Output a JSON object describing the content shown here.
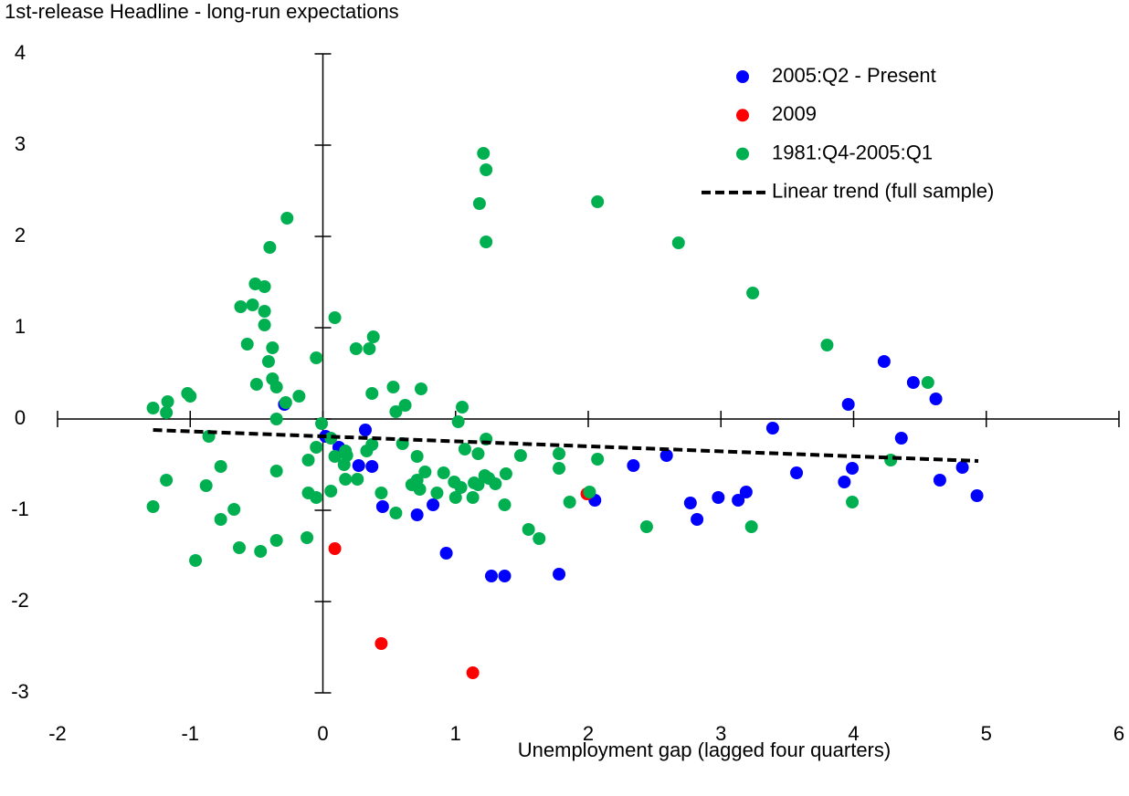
{
  "chart_data": {
    "type": "scatter",
    "title": "1st-release Headline - long-run expectations",
    "x_label": "Unemployment gap (lagged four quarters)",
    "xlim": [
      -2,
      6
    ],
    "xticks": [
      -2,
      -1,
      0,
      1,
      2,
      3,
      4,
      5,
      6
    ],
    "ylim": [
      -3,
      4
    ],
    "yticks": [
      -3,
      -2,
      -1,
      0,
      1,
      2,
      3,
      4
    ],
    "grid": false,
    "legend": "upper right",
    "series": [
      {
        "name": "2005:Q2 - Present",
        "color": "#0000ff",
        "x": [
          -0.29,
          0.02,
          0.12,
          0.32,
          0.27,
          0.37,
          0.45,
          0.71,
          0.83,
          0.93,
          1.27,
          1.37,
          1.78,
          2.05,
          2.34,
          2.59,
          2.77,
          2.82,
          2.98,
          3.13,
          3.19,
          3.39,
          3.57,
          3.93,
          3.99,
          3.96,
          4.23,
          4.45,
          4.36,
          4.62,
          4.65,
          4.82,
          4.93
        ],
        "values": [
          0.16,
          -0.19,
          -0.31,
          -0.12,
          -0.51,
          -0.52,
          -0.96,
          -1.05,
          -0.94,
          -1.47,
          -1.72,
          -1.72,
          -1.7,
          -0.89,
          -0.51,
          -0.4,
          -0.92,
          -1.1,
          -0.86,
          -0.89,
          -0.8,
          -0.1,
          -0.59,
          -0.69,
          -0.54,
          0.16,
          0.63,
          0.4,
          -0.21,
          0.22,
          -0.67,
          -0.53,
          -0.84
        ]
      },
      {
        "name": "2009",
        "color": "#ff0000",
        "x": [
          0.09,
          0.44,
          1.13,
          1.99
        ],
        "values": [
          -1.42,
          -2.46,
          -2.78,
          -0.82
        ]
      },
      {
        "name": "1981:Q4-2005:Q1",
        "color": "#00b050",
        "x": [
          -1.28,
          -1.17,
          -1.18,
          -1.02,
          -1.0,
          -1.28,
          -1.18,
          -0.86,
          -0.88,
          -0.96,
          -0.77,
          -0.77,
          -0.67,
          -0.63,
          -0.47,
          -0.35,
          -0.62,
          -0.53,
          -0.57,
          -0.51,
          -0.44,
          -0.44,
          -0.44,
          -0.4,
          -0.41,
          -0.38,
          -0.5,
          -0.38,
          -0.35,
          -0.35,
          -0.35,
          -0.27,
          -0.28,
          -0.18,
          -0.05,
          -0.01,
          -0.05,
          -0.11,
          -0.11,
          -0.05,
          -0.12,
          0.09,
          0.06,
          0.06,
          0.09,
          0.17,
          0.18,
          0.17,
          0.16,
          0.25,
          0.35,
          0.38,
          0.37,
          0.26,
          0.33,
          0.37,
          0.44,
          0.53,
          0.55,
          0.55,
          0.62,
          0.6,
          0.67,
          0.71,
          0.71,
          0.73,
          0.74,
          0.77,
          0.86,
          0.91,
          0.99,
          1.02,
          1.0,
          1.05,
          1.04,
          1.07,
          1.13,
          1.14,
          1.17,
          1.18,
          1.21,
          1.23,
          1.23,
          1.23,
          1.17,
          1.22,
          1.25,
          1.3,
          1.38,
          1.37,
          1.49,
          1.55,
          1.63,
          1.78,
          1.78,
          1.86,
          2.01,
          2.07,
          2.07,
          2.44,
          2.68,
          3.24,
          3.23,
          3.8,
          3.99,
          4.28,
          4.56
        ],
        "values": [
          0.12,
          0.19,
          0.07,
          0.28,
          0.25,
          -0.96,
          -0.67,
          -0.19,
          -0.73,
          -1.55,
          -0.52,
          -1.1,
          -0.99,
          -1.41,
          -1.45,
          -1.33,
          1.23,
          1.25,
          0.82,
          1.48,
          1.45,
          1.18,
          1.03,
          1.88,
          0.63,
          0.78,
          0.38,
          0.44,
          0.35,
          0.0,
          -0.57,
          2.2,
          0.18,
          0.25,
          0.67,
          -0.05,
          -0.31,
          -0.45,
          -0.81,
          -0.86,
          -1.3,
          1.11,
          -0.21,
          -0.79,
          -0.41,
          -0.35,
          -0.4,
          -0.66,
          -0.5,
          0.77,
          0.77,
          0.9,
          0.28,
          -0.66,
          -0.35,
          -0.28,
          -0.81,
          0.35,
          0.08,
          -1.03,
          0.15,
          -0.27,
          -0.72,
          -0.67,
          -0.41,
          -0.77,
          0.33,
          -0.58,
          -0.81,
          -0.59,
          -0.69,
          -0.03,
          -0.86,
          0.13,
          -0.75,
          -0.33,
          -0.86,
          -0.7,
          -0.38,
          2.36,
          2.91,
          2.73,
          1.94,
          -0.22,
          -0.72,
          -0.62,
          -0.65,
          -0.71,
          -0.6,
          -0.94,
          -0.4,
          -1.21,
          -1.31,
          -0.38,
          -0.54,
          -0.91,
          -0.8,
          -0.44,
          2.38,
          -1.18,
          1.93,
          1.38,
          -1.18,
          0.81,
          -0.91,
          -0.45,
          0.4
        ]
      },
      {
        "name": "Linear trend (full sample)",
        "type": "line",
        "color": "#000000",
        "dashed": true,
        "x": [
          -1.28,
          4.94
        ],
        "values": [
          -0.12,
          -0.46
        ]
      }
    ]
  }
}
